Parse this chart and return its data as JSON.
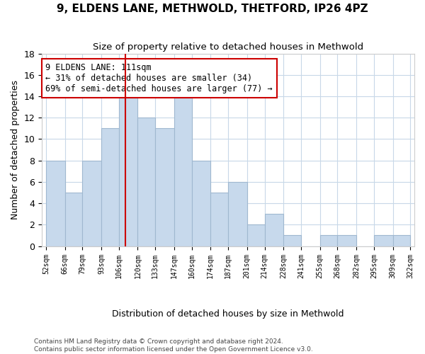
{
  "title_line1": "9, ELDENS LANE, METHWOLD, THETFORD, IP26 4PZ",
  "title_line2": "Size of property relative to detached houses in Methwold",
  "xlabel": "Distribution of detached houses by size in Methwold",
  "ylabel": "Number of detached properties",
  "bar_left_edges": [
    52,
    66,
    79,
    93,
    106,
    120,
    133,
    147,
    160,
    174,
    187,
    201,
    214,
    228,
    241,
    255,
    268,
    282,
    295,
    309
  ],
  "bar_right_edges": [
    66,
    79,
    93,
    106,
    120,
    133,
    147,
    160,
    174,
    187,
    201,
    214,
    228,
    241,
    255,
    268,
    282,
    295,
    309,
    322
  ],
  "bar_heights": [
    8,
    5,
    8,
    11,
    14,
    12,
    11,
    15,
    8,
    5,
    6,
    2,
    3,
    1,
    0,
    1,
    1,
    0,
    1,
    1
  ],
  "bar_color": "#c7d9ec",
  "bar_edgecolor": "#a0b8d0",
  "property_line_x": 111,
  "property_line_color": "#cc0000",
  "annotation_text": "9 ELDENS LANE: 111sqm\n← 31% of detached houses are smaller (34)\n69% of semi-detached houses are larger (77) →",
  "annotation_box_color": "#ffffff",
  "annotation_border_color": "#cc0000",
  "ylim": [
    0,
    18
  ],
  "yticks": [
    0,
    2,
    4,
    6,
    8,
    10,
    12,
    14,
    16,
    18
  ],
  "tick_positions": [
    52,
    66,
    79,
    93,
    106,
    120,
    133,
    147,
    160,
    174,
    187,
    201,
    214,
    228,
    241,
    255,
    268,
    282,
    295,
    309,
    322
  ],
  "tick_labels": [
    "52sqm",
    "66sqm",
    "79sqm",
    "93sqm",
    "106sqm",
    "120sqm",
    "133sqm",
    "147sqm",
    "160sqm",
    "174sqm",
    "187sqm",
    "201sqm",
    "214sqm",
    "228sqm",
    "241sqm",
    "255sqm",
    "268sqm",
    "282sqm",
    "295sqm",
    "309sqm",
    "322sqm"
  ],
  "footer_line1": "Contains HM Land Registry data © Crown copyright and database right 2024.",
  "footer_line2": "Contains public sector information licensed under the Open Government Licence v3.0.",
  "background_color": "#ffffff",
  "grid_color": "#c8d8e8"
}
